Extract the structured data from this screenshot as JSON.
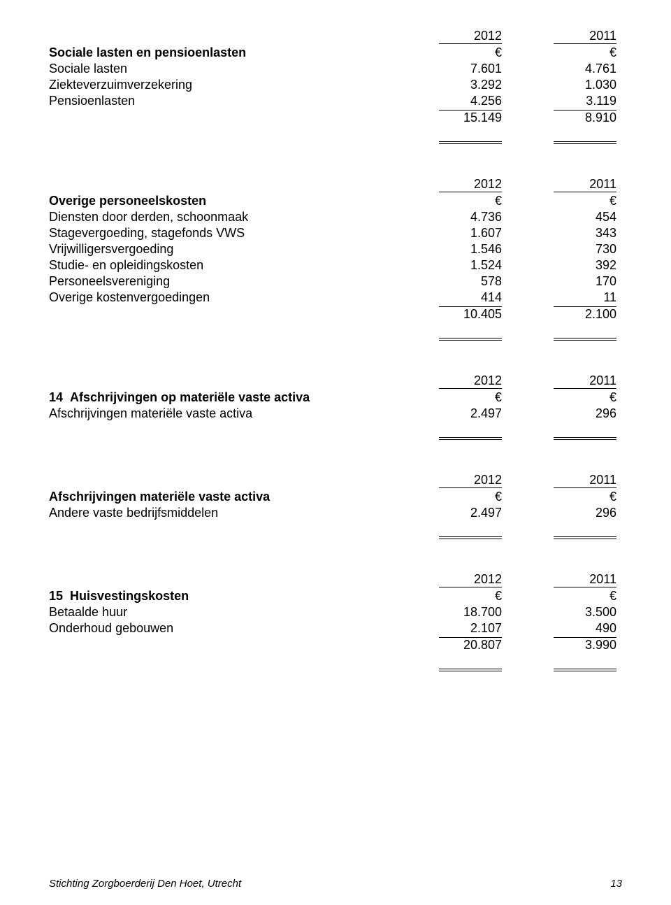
{
  "sections": [
    {
      "years": [
        "2012",
        "2011"
      ],
      "currency": [
        "€",
        "€"
      ],
      "title": "Sociale lasten en pensioenlasten",
      "rows": [
        {
          "label": "Sociale lasten",
          "v1": "7.601",
          "v2": "4.761"
        },
        {
          "label": "Ziekteverzuimverzekering",
          "v1": "3.292",
          "v2": "1.030"
        },
        {
          "label": "Pensioenlasten",
          "v1": "4.256",
          "v2": "3.119"
        }
      ],
      "total": {
        "v1": "15.149",
        "v2": "8.910"
      }
    },
    {
      "years": [
        "2012",
        "2011"
      ],
      "currency": [
        "€",
        "€"
      ],
      "title": "Overige personeelskosten",
      "rows": [
        {
          "label": "Diensten door derden, schoonmaak",
          "v1": "4.736",
          "v2": "454"
        },
        {
          "label": "Stagevergoeding, stagefonds VWS",
          "v1": "1.607",
          "v2": "343"
        },
        {
          "label": "Vrijwilligersvergoeding",
          "v1": "1.546",
          "v2": "730"
        },
        {
          "label": "Studie- en opleidingskosten",
          "v1": "1.524",
          "v2": "392"
        },
        {
          "label": "Personeelsvereniging",
          "v1": "578",
          "v2": "170"
        },
        {
          "label": "Overige kostenvergoedingen",
          "v1": "414",
          "v2": "11"
        }
      ],
      "total": {
        "v1": "10.405",
        "v2": "2.100"
      }
    },
    {
      "num": "14",
      "years": [
        "2012",
        "2011"
      ],
      "currency": [
        "€",
        "€"
      ],
      "title": "Afschrijvingen op materiële vaste activa",
      "row": {
        "label": "Afschrijvingen materiële vaste activa",
        "v1": "2.497",
        "v2": "296"
      }
    },
    {
      "years": [
        "2012",
        "2011"
      ],
      "currency": [
        "€",
        "€"
      ],
      "title": "Afschrijvingen materiële vaste activa",
      "row": {
        "label": "Andere vaste bedrijfsmiddelen",
        "v1": "2.497",
        "v2": "296"
      }
    },
    {
      "num": "15",
      "years": [
        "2012",
        "2011"
      ],
      "currency": [
        "€",
        "€"
      ],
      "title": "Huisvestingskosten",
      "rows": [
        {
          "label": "Betaalde huur",
          "v1": "18.700",
          "v2": "3.500"
        },
        {
          "label": "Onderhoud gebouwen",
          "v1": "2.107",
          "v2": "490"
        }
      ],
      "total": {
        "v1": "20.807",
        "v2": "3.990"
      }
    }
  ],
  "footer": {
    "left": "Stichting Zorgboerderij Den Hoet, Utrecht",
    "page": "13"
  }
}
